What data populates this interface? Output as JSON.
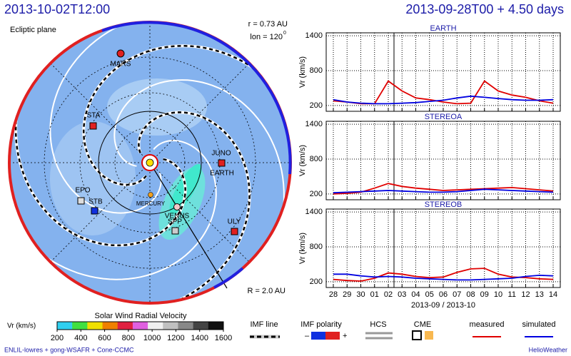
{
  "header": {
    "left": "2013-10-02T12:00",
    "right": "2013-09-28T00 + 4.50 days"
  },
  "polar_plot": {
    "title": "Ecliptic plane",
    "radius_label": "r = 0.73 AU",
    "lon_label": "lon = 120",
    "lon_degree": "0",
    "range_label": "R = 2.0 AU",
    "objects": [
      "MARS",
      "STA",
      "JUNO",
      "EARTH",
      "EPO",
      "STB",
      "MERCURY",
      "VENUS",
      "SPP",
      "ULY"
    ]
  },
  "colorbar": {
    "title": "Solar Wind Radial Velocity",
    "label": "Vr (km/s)",
    "lim": [
      200,
      1600
    ],
    "ticks": [
      200,
      400,
      600,
      800,
      1000,
      1200,
      1400,
      1600
    ]
  },
  "legend": {
    "imf_line": "IMF line",
    "imf_polarity": "IMF polarity",
    "minus": "–",
    "plus": "+",
    "hcs": "HCS",
    "cme": "CME"
  },
  "footer": {
    "left": "ENLIL-lowres + gong-WSAFR + Cone-CCMC",
    "right": "HelioWeather"
  },
  "chart_data": [
    {
      "type": "line",
      "title": "EARTH",
      "y_label": "Vr (km/s)",
      "ylim": [
        100,
        1450
      ],
      "yticks": [
        200,
        800,
        1400
      ],
      "grid": true,
      "categories": [
        "28",
        "29",
        "30",
        "01",
        "02",
        "03",
        "04",
        "05",
        "06",
        "07",
        "08",
        "09",
        "10",
        "11",
        "12",
        "13",
        "14"
      ],
      "series": [
        {
          "name": "measured",
          "color": "#e00000",
          "values": [
            280,
            260,
            230,
            230,
            620,
            450,
            330,
            300,
            260,
            230,
            240,
            620,
            450,
            380,
            340,
            280,
            240
          ]
        },
        {
          "name": "simulated",
          "color": "#0000e0",
          "values": [
            300,
            260,
            240,
            230,
            230,
            240,
            250,
            270,
            290,
            330,
            360,
            340,
            320,
            300,
            290,
            290,
            300
          ]
        }
      ]
    },
    {
      "type": "line",
      "title": "STEREOA",
      "y_label": "Vr (km/s)",
      "ylim": [
        100,
        1450
      ],
      "yticks": [
        200,
        800,
        1400
      ],
      "grid": true,
      "categories": [
        "28",
        "29",
        "30",
        "01",
        "02",
        "03",
        "04",
        "05",
        "06",
        "07",
        "08",
        "09",
        "10",
        "11",
        "12",
        "13",
        "14"
      ],
      "series": [
        {
          "name": "measured",
          "color": "#e00000",
          "values": [
            200,
            210,
            230,
            300,
            380,
            330,
            300,
            280,
            260,
            270,
            280,
            290,
            300,
            310,
            290,
            270,
            250
          ]
        },
        {
          "name": "simulated",
          "color": "#0000e0",
          "values": [
            220,
            230,
            240,
            250,
            260,
            250,
            240,
            230,
            230,
            240,
            260,
            280,
            270,
            260,
            250,
            240,
            230
          ]
        }
      ]
    },
    {
      "type": "line",
      "title": "STEREOB",
      "y_label": "Vr (km/s)",
      "x_label": "2013-09 / 2013-10",
      "ylim": [
        100,
        1450
      ],
      "yticks": [
        200,
        800,
        1400
      ],
      "grid": true,
      "categories": [
        "28",
        "29",
        "30",
        "01",
        "02",
        "03",
        "04",
        "05",
        "06",
        "07",
        "08",
        "09",
        "10",
        "11",
        "12",
        "13",
        "14"
      ],
      "series": [
        {
          "name": "measured",
          "color": "#e00000",
          "values": [
            240,
            220,
            210,
            260,
            350,
            330,
            290,
            270,
            280,
            360,
            420,
            430,
            330,
            280,
            270,
            250,
            240
          ]
        },
        {
          "name": "simulated",
          "color": "#0000e0",
          "values": [
            330,
            330,
            300,
            280,
            290,
            280,
            260,
            250,
            240,
            230,
            230,
            240,
            250,
            260,
            290,
            310,
            300
          ]
        }
      ]
    }
  ]
}
